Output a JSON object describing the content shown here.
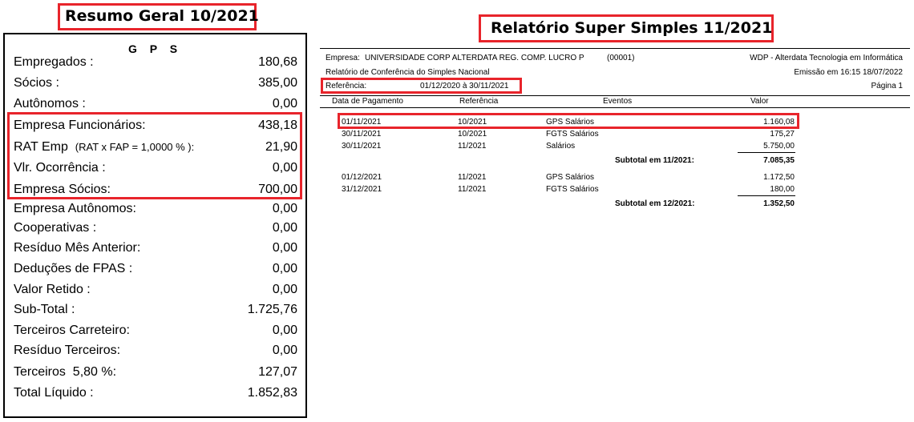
{
  "left": {
    "title": "Resumo Geral 10/2021",
    "header": "G P S",
    "rows": [
      {
        "label": "Empregados :",
        "value": "180,68"
      },
      {
        "label": "Sócios :",
        "value": "385,00"
      },
      {
        "label": "Autônomos :",
        "value": "0,00"
      },
      {
        "label": "Empresa Funcionários:",
        "value": "438,18"
      },
      {
        "label": "RAT Emp",
        "note": "(RAT x FAP =  1,0000 % ):",
        "value": "21,90"
      },
      {
        "label": "Vlr. Ocorrência :",
        "value": "0,00"
      },
      {
        "label": "Empresa Sócios:",
        "value": "700,00"
      },
      {
        "label": "Empresa Autônomos:",
        "value": "0,00"
      },
      {
        "label": "Cooperativas :",
        "value": "0,00"
      },
      {
        "label": "Resíduo Mês Anterior:",
        "value": "0,00"
      },
      {
        "label": "Deduções de FPAS :",
        "value": "0,00"
      },
      {
        "label": "Valor Retido :",
        "value": "0,00"
      },
      {
        "label": "Sub-Total :",
        "value": "1.725,76"
      },
      {
        "label": "Terceiros Carreteiro:",
        "value": "0,00"
      },
      {
        "label": "Resíduo Terceiros:",
        "value": "0,00"
      },
      {
        "label": "Terceiros  5,80 %:",
        "value": "127,07"
      },
      {
        "label": "Total Líquido :",
        "value": "1.852,83"
      }
    ]
  },
  "right": {
    "title": "Relatório Super Simples 11/2021",
    "empresa_label": "Empresa:",
    "empresa_name": "UNIVERSIDADE CORP ALTERDATA REG. COMP. LUCRO P",
    "empresa_code": "(00001)",
    "vendor": "WDP - Alterdata Tecnologia em Informática",
    "report_name": "Relatório de Conferência do Simples Nacional",
    "emissao": "Emissão em 16:15 18/07/2022",
    "referencia_label": "Referência:",
    "referencia_value": "01/12/2020 à 30/11/2021",
    "pagina": "Página 1",
    "columns": [
      "Data de Pagamento",
      "Referência",
      "Eventos",
      "Valor"
    ],
    "group1": [
      {
        "data": "01/11/2021",
        "ref": "10/2021",
        "evento": "GPS Salários",
        "valor": "1.160,08"
      },
      {
        "data": "30/11/2021",
        "ref": "10/2021",
        "evento": "FGTS Salários",
        "valor": "175,27"
      },
      {
        "data": "30/11/2021",
        "ref": "11/2021",
        "evento": "Salários",
        "valor": "5.750,00"
      }
    ],
    "subtotal1_label": "Subtotal em  11/2021:",
    "subtotal1_value": "7.085,35",
    "group2": [
      {
        "data": "01/12/2021",
        "ref": "11/2021",
        "evento": "GPS Salários",
        "valor": "1.172,50"
      },
      {
        "data": "31/12/2021",
        "ref": "11/2021",
        "evento": "FGTS Salários",
        "valor": "180,00"
      }
    ],
    "subtotal2_label": "Subtotal em  12/2021:",
    "subtotal2_value": "1.352,50"
  },
  "colors": {
    "highlight": "#e8242b",
    "text": "#000000",
    "background": "#ffffff"
  }
}
